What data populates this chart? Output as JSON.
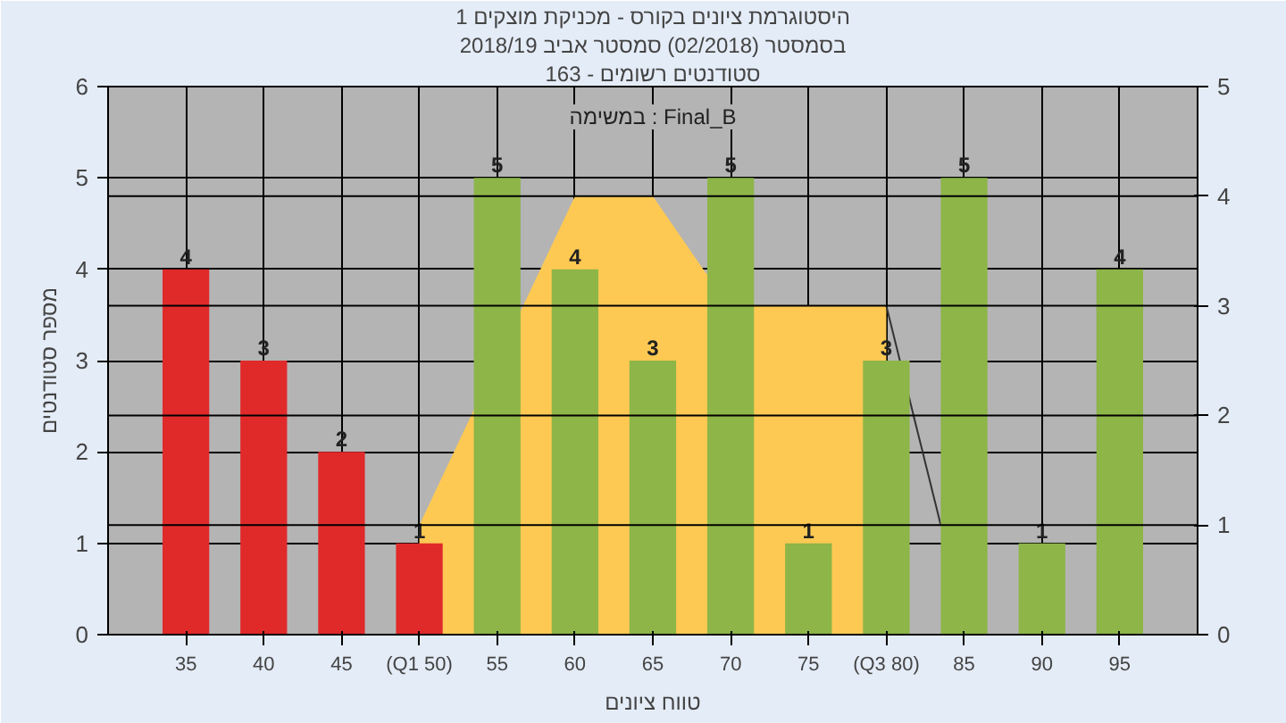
{
  "chart_data": {
    "type": "bar",
    "title": "היסטוגרמת ציונים בקורס - מכניקת מוצקים 1",
    "subtitle": "בסמסטר (02/2018) סמסטר אביב 2018/19",
    "xlabel": "טווח ציונים",
    "ylabel": "מספר סטודנטים",
    "annotations": [
      "סטודנטים רשומים - 163",
      "במשימה : Final_B"
    ],
    "x": [
      35,
      40,
      45,
      50,
      55,
      60,
      65,
      70,
      75,
      80,
      85,
      90,
      95
    ],
    "xlim": [
      30,
      100
    ],
    "xticks": [
      35,
      40,
      45,
      {
        "value": 50,
        "label": "(Q1 50)"
      },
      55,
      60,
      65,
      70,
      75,
      {
        "value": 80,
        "label": "(Q3 80)"
      },
      85,
      90,
      95
    ],
    "ylim": [
      0,
      6
    ],
    "yticks": [
      0,
      1,
      2,
      3,
      4,
      5,
      6
    ],
    "y2lim": [
      0,
      5
    ],
    "y2ticks": [
      0,
      1,
      2,
      3,
      4,
      5
    ],
    "grid": true,
    "series": [
      {
        "type": "area",
        "axis": "y2",
        "color": "#fdc953",
        "x": [
          50,
          60,
          65,
          68.4,
          71.6,
          80
        ],
        "values": [
          1,
          4,
          4,
          3.3,
          3,
          3
        ]
      },
      {
        "type": "line",
        "axis": "y2",
        "color": "#333333",
        "x": [
          80,
          83.5
        ],
        "values": [
          3,
          1
        ]
      },
      {
        "colors": [
          "#e02a2a",
          "#e02a2a",
          "#e02a2a",
          "#e02a2a",
          "#8db548",
          "#8db548",
          "#8db548",
          "#8db548",
          "#8db548",
          "#8db548",
          "#8db548",
          "#8db548",
          "#8db548"
        ],
        "values": [
          4,
          3,
          2,
          1,
          5,
          4,
          3,
          5,
          1,
          3,
          5,
          1,
          4
        ],
        "value_labels": [
          "4",
          "3",
          "2",
          "1",
          "5",
          "4",
          "3",
          "5",
          "1",
          "3",
          "5",
          "1",
          "4"
        ]
      }
    ]
  }
}
